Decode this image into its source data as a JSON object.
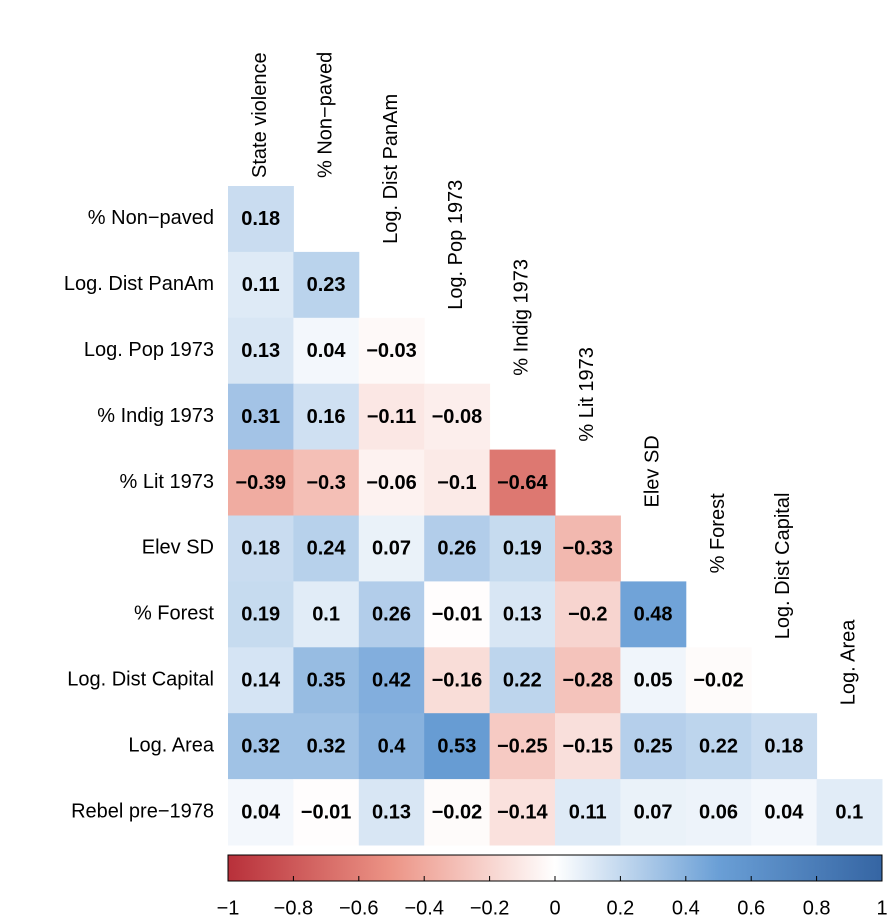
{
  "chart_data": {
    "type": "heatmap",
    "row_labels": [
      "% Non−paved",
      "Log. Dist PanAm",
      "Log. Pop 1973",
      "% Indig 1973",
      "% Lit 1973",
      "Elev SD",
      "% Forest",
      "Log. Dist Capital",
      "Log. Area",
      "Rebel pre−1978"
    ],
    "col_labels": [
      "State violence",
      "% Non−paved",
      "Log. Dist PanAm",
      "Log. Pop 1973",
      "% Indig 1973",
      "% Lit 1973",
      "Elev SD",
      "% Forest",
      "Log. Dist Capital",
      "Log. Area"
    ],
    "values": [
      [
        0.18
      ],
      [
        0.11,
        0.23
      ],
      [
        0.13,
        0.04,
        -0.03
      ],
      [
        0.31,
        0.16,
        -0.11,
        -0.08
      ],
      [
        -0.39,
        -0.3,
        -0.06,
        -0.1,
        -0.64
      ],
      [
        0.18,
        0.24,
        0.07,
        0.26,
        0.19,
        -0.33
      ],
      [
        0.19,
        0.1,
        0.26,
        -0.01,
        0.13,
        -0.2,
        0.48
      ],
      [
        0.14,
        0.35,
        0.42,
        -0.16,
        0.22,
        -0.28,
        0.05,
        -0.02
      ],
      [
        0.32,
        0.32,
        0.4,
        0.53,
        -0.25,
        -0.15,
        0.25,
        0.22,
        0.18
      ],
      [
        0.04,
        -0.01,
        0.13,
        -0.02,
        -0.14,
        0.11,
        0.07,
        0.06,
        0.04,
        0.1
      ]
    ],
    "value_labels": [
      [
        "0.18"
      ],
      [
        "0.11",
        "0.23"
      ],
      [
        "0.13",
        "0.04",
        "−0.03"
      ],
      [
        "0.31",
        "0.16",
        "−0.11",
        "−0.08"
      ],
      [
        "−0.39",
        "−0.3",
        "−0.06",
        "−0.1",
        "−0.64"
      ],
      [
        "0.18",
        "0.24",
        "0.07",
        "0.26",
        "0.19",
        "−0.33"
      ],
      [
        "0.19",
        "0.1",
        "0.26",
        "−0.01",
        "0.13",
        "−0.2",
        "0.48"
      ],
      [
        "0.14",
        "0.35",
        "0.42",
        "−0.16",
        "0.22",
        "−0.28",
        "0.05",
        "−0.02"
      ],
      [
        "0.32",
        "0.32",
        "0.4",
        "0.53",
        "−0.25",
        "−0.15",
        "0.25",
        "0.22",
        "0.18"
      ],
      [
        "0.04",
        "−0.01",
        "0.13",
        "−0.02",
        "−0.14",
        "0.11",
        "0.07",
        "0.06",
        "0.04",
        "0.1"
      ]
    ],
    "colorscale": [
      [
        -1,
        "#b8303a"
      ],
      [
        -0.5,
        "#ec9486"
      ],
      [
        0,
        "#ffffff"
      ],
      [
        0.5,
        "#6a9fd6"
      ],
      [
        1,
        "#3565a3"
      ]
    ],
    "clim": [
      -1,
      1
    ],
    "cticks": [
      {
        "value": -1,
        "label": "−1"
      },
      {
        "value": -0.8,
        "label": "−0.8"
      },
      {
        "value": -0.6,
        "label": "−0.6"
      },
      {
        "value": -0.4,
        "label": "−0.4"
      },
      {
        "value": -0.2,
        "label": "−0.2"
      },
      0,
      0.2,
      0.4,
      0.6,
      0.8,
      1
    ]
  }
}
